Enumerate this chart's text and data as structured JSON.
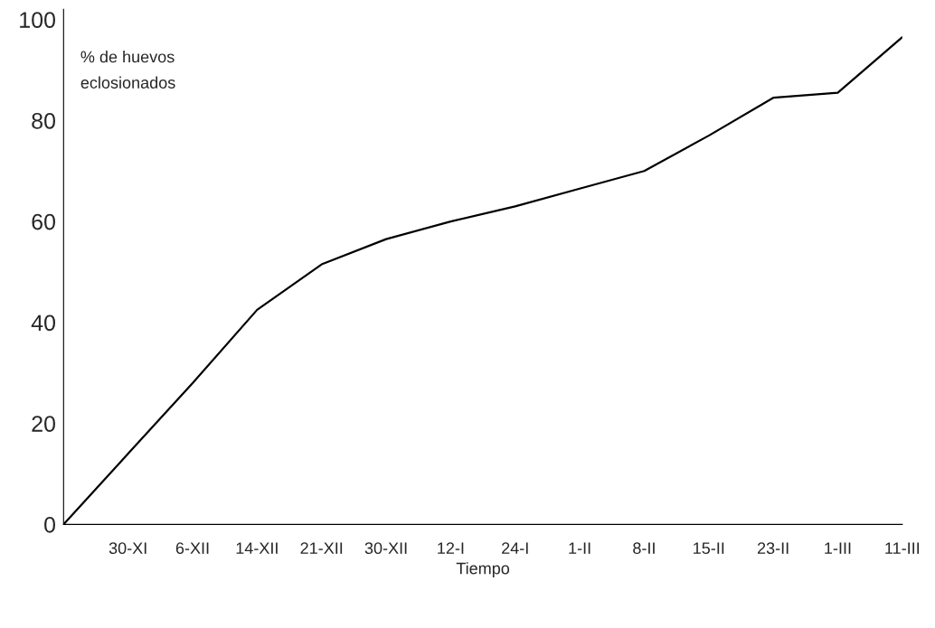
{
  "chart_data": {
    "type": "line",
    "ylabel": "% de huevos\neclosionados",
    "xlabel": "Tiempo",
    "categories": [
      null,
      "30-XI",
      "6-XII",
      "14-XII",
      "21-XII",
      "30-XII",
      "12-I",
      "24-I",
      "1-II",
      "8-II",
      "15-II",
      "23-II",
      "1-III",
      "11-III"
    ],
    "series": [
      {
        "color": "#000000",
        "values": [
          0,
          14,
          28,
          42.5,
          51.5,
          56.5,
          60,
          63,
          66.5,
          70,
          77,
          84.5,
          85.5,
          96.5
        ]
      }
    ],
    "ylim": [
      0,
      102
    ],
    "yticks": [
      0,
      20,
      40,
      60,
      80,
      100
    ],
    "grid": false,
    "legend": false,
    "marker": "none",
    "line_style": "solid"
  }
}
